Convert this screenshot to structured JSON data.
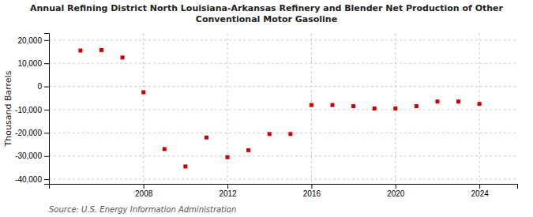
{
  "chart_data": {
    "type": "scatter",
    "title": "Annual Refining District North Louisiana-Arkansas Refinery and Blender Net Production of Other\nConventional Motor Gasoline",
    "ylabel": "Thousand Barrels",
    "source": "Source: U.S. Energy Information Administration",
    "x": [
      2005,
      2006,
      2007,
      2008,
      2009,
      2010,
      2011,
      2012,
      2013,
      2014,
      2015,
      2016,
      2017,
      2018,
      2019,
      2020,
      2021,
      2022,
      2023,
      2024
    ],
    "values": [
      15500,
      15700,
      12500,
      -2500,
      -27000,
      -34500,
      -22000,
      -30500,
      -27500,
      -20500,
      -20500,
      -8000,
      -8000,
      -8500,
      -9500,
      -9500,
      -8500,
      -6500,
      -6500,
      -7500
    ],
    "color": "#cc0000",
    "marker": "square",
    "xlim": [
      2003.5,
      2025.8
    ],
    "xticks": [
      2008,
      2012,
      2016,
      2020,
      2024
    ],
    "ylim": [
      -42000,
      23000
    ],
    "yticks": [
      {
        "value": -40000,
        "label": "-40,000"
      },
      {
        "value": -30000,
        "label": "-30,000"
      },
      {
        "value": -20000,
        "label": "-20,000"
      },
      {
        "value": -10000,
        "label": "-10,000"
      },
      0,
      {
        "value": 10000,
        "label": "10,000"
      },
      {
        "value": 20000,
        "label": "20,000"
      }
    ],
    "grid": true
  }
}
